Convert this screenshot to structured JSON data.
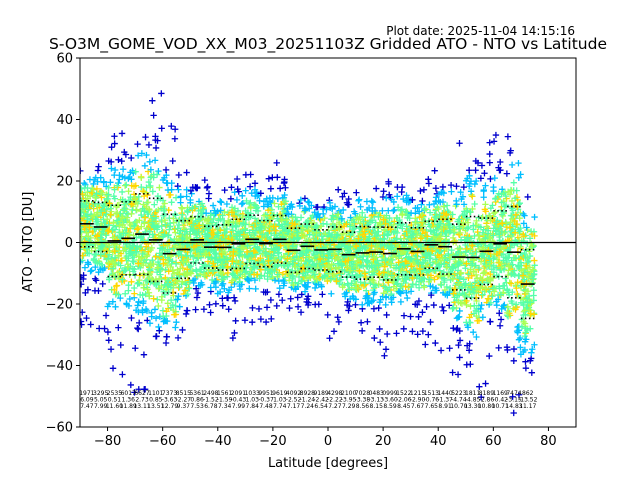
{
  "plot_date": "Plot date: 2025-11-04 14:15:16",
  "chart_data": {
    "type": "scatter",
    "title": "S-O3M_GOME_VOD_XX_M03_20251103Z Gridded ATO - NTO vs Latitude",
    "xlabel": "Latitude [degrees]",
    "ylabel": "ATO - NTO [DU]",
    "xlim": [
      -90,
      90
    ],
    "ylim": [
      -60,
      60
    ],
    "xticks": [
      -80,
      -60,
      -40,
      -20,
      0,
      20,
      40,
      60,
      80
    ],
    "yticks": [
      -60,
      -40,
      -20,
      0,
      20,
      40,
      60
    ],
    "xtick_labels": [
      "−80",
      "−60",
      "−40",
      "−20",
      "0",
      "20",
      "40",
      "60",
      "80"
    ],
    "ytick_labels": [
      "−60",
      "−40",
      "−20",
      "0",
      "20",
      "40",
      "60"
    ],
    "grid": false,
    "reference_line_y": 0,
    "marker": "+",
    "colors": [
      "#0000cd",
      "#00bfff",
      "#54ffa8",
      "#a8ff54",
      "#ffd700"
    ],
    "bins": [
      {
        "lat": -87.5,
        "mean": 6.09,
        "std": 7.47,
        "lo": -28,
        "hi": 24,
        "count": "1971"
      },
      {
        "lat": -82.5,
        "mean": 5.05,
        "std": 7.99,
        "lo": -30,
        "hi": 26,
        "count": "3295"
      },
      {
        "lat": -77.5,
        "mean": 0.51,
        "std": 11.6,
        "lo": -45,
        "hi": 41,
        "count": "2535"
      },
      {
        "lat": -72.5,
        "mean": 1.36,
        "std": 11.89,
        "lo": -58,
        "hi": 38,
        "count": "6017"
      },
      {
        "lat": -67.5,
        "mean": 2.73,
        "std": 13.11,
        "lo": -48,
        "hi": 40,
        "count": "6627"
      },
      {
        "lat": -62.5,
        "mean": 0.85,
        "std": 13.51,
        "lo": -42,
        "hi": 50,
        "count": "1101"
      },
      {
        "lat": -57.5,
        "mean": -3.63,
        "std": 12.79,
        "lo": -35,
        "hi": 42,
        "count": "7373"
      },
      {
        "lat": -52.5,
        "mean": -2.27,
        "std": 9.37,
        "lo": -32,
        "hi": 25,
        "count": "8515"
      },
      {
        "lat": -47.5,
        "mean": 0.86,
        "std": 7.53,
        "lo": -28,
        "hi": 18,
        "count": "5361"
      },
      {
        "lat": -42.5,
        "mean": -1.52,
        "std": 6.78,
        "lo": -24,
        "hi": 22,
        "count": "2498"
      },
      {
        "lat": -37.5,
        "mean": -1.59,
        "std": 7.34,
        "lo": -23,
        "hi": 24,
        "count": "1561"
      },
      {
        "lat": -32.5,
        "mean": -0.43,
        "std": 7.99,
        "lo": -32,
        "hi": 22,
        "count": "2091"
      },
      {
        "lat": -27.5,
        "mean": 1.03,
        "std": 7.84,
        "lo": -28,
        "hi": 24,
        "count": "1033"
      },
      {
        "lat": -22.5,
        "mean": -0.37,
        "std": 7.48,
        "lo": -26,
        "hi": 22,
        "count": "9951"
      },
      {
        "lat": -17.5,
        "mean": 1.03,
        "std": 7.74,
        "lo": -28,
        "hi": 30,
        "count": "9619"
      },
      {
        "lat": -12.5,
        "mean": -2.52,
        "std": 7.17,
        "lo": -27,
        "hi": 20,
        "count": "4092"
      },
      {
        "lat": -7.5,
        "mean": -1.24,
        "std": 7.24,
        "lo": -24,
        "hi": 16,
        "count": "8928"
      },
      {
        "lat": -2.5,
        "mean": -2.42,
        "std": 6.54,
        "lo": -25,
        "hi": 15,
        "count": "9189"
      },
      {
        "lat": 2.5,
        "mean": -2.22,
        "std": 7.27,
        "lo": -32,
        "hi": 18,
        "count": "4298"
      },
      {
        "lat": 7.5,
        "mean": -3.95,
        "std": 7.29,
        "lo": -26,
        "hi": 16,
        "count": "2100"
      },
      {
        "lat": 12.5,
        "mean": -3.38,
        "std": 8.56,
        "lo": -30,
        "hi": 18,
        "count": "7028"
      },
      {
        "lat": 17.5,
        "mean": -3.13,
        "std": 8.15,
        "lo": -34,
        "hi": 22,
        "count": "0483"
      },
      {
        "lat": 22.5,
        "mean": -3.6,
        "std": 8.59,
        "lo": -38,
        "hi": 30,
        "count": "0999"
      },
      {
        "lat": 27.5,
        "mean": -2.06,
        "std": 8.45,
        "lo": -30,
        "hi": 18,
        "count": "1522"
      },
      {
        "lat": 32.5,
        "mean": -2.9,
        "std": 7.67,
        "lo": -30,
        "hi": 18,
        "count": "1215"
      },
      {
        "lat": 37.5,
        "mean": -0.76,
        "std": 7.65,
        "lo": -38,
        "hi": 25,
        "count": "1513"
      },
      {
        "lat": 42.5,
        "mean": -1.37,
        "std": 8.91,
        "lo": -44,
        "hi": 30,
        "count": "1440"
      },
      {
        "lat": 47.5,
        "mean": -4.74,
        "std": 10.7,
        "lo": -45,
        "hi": 38,
        "count": "5223"
      },
      {
        "lat": 52.5,
        "mean": -4.85,
        "std": 13.3,
        "lo": -50,
        "hi": 35,
        "count": "1811"
      },
      {
        "lat": 57.5,
        "mean": -2.86,
        "std": 10.8,
        "lo": -52,
        "hi": 46,
        "count": "8189"
      },
      {
        "lat": 62.5,
        "mean": -0.42,
        "std": 10.71,
        "lo": -45,
        "hi": 35,
        "count": "1169"
      },
      {
        "lat": 67.5,
        "mean": -3.15,
        "std": 14.83,
        "lo": -58,
        "hi": 38,
        "count": "7474"
      },
      {
        "lat": 72.5,
        "mean": -13.52,
        "std": 11.17,
        "lo": -44,
        "hi": 16,
        "count": "862"
      }
    ]
  }
}
